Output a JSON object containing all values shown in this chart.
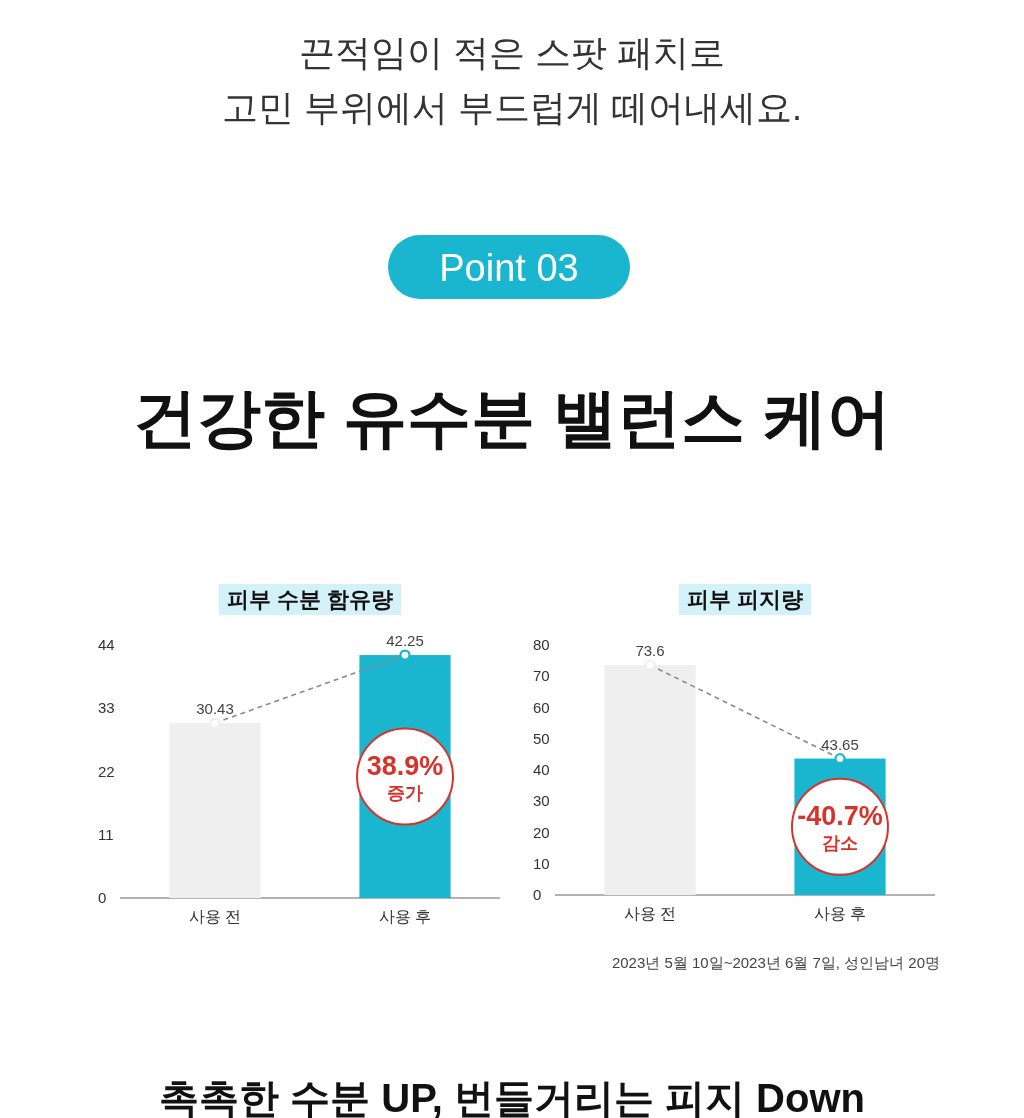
{
  "chart_data": [
    {
      "type": "other",
      "annotations": [
        "끈적임이 적은 스팟 패치로",
        "고민 부위에서 부드럽게 떼어내세요."
      ],
      "subtitle": "Point 03",
      "title": "건강한 유수분 밸런스 케어"
    },
    {
      "type": "bar",
      "title": "피부 수분 함유량",
      "categories": [
        "사용 전",
        "사용 후"
      ],
      "ylim": [
        0,
        44
      ],
      "yticks": [
        0,
        11,
        22,
        33,
        44
      ],
      "data_labels": true,
      "marker": "circle",
      "line_style": "dashed",
      "series": [
        {
          "values": [
            30.43,
            42.25
          ],
          "colors": [
            "#efefef",
            "#1ab6cf"
          ]
        }
      ],
      "annotations": [
        "38.9%\n증가"
      ]
    },
    {
      "type": "bar",
      "title": "피부 피지량",
      "categories": [
        "사용 전",
        "사용 후"
      ],
      "ylim": [
        0,
        80
      ],
      "yticks": [
        0,
        10,
        20,
        30,
        40,
        50,
        60,
        70,
        80
      ],
      "data_labels": true,
      "marker": "circle",
      "line_style": "dashed",
      "series": [
        {
          "values": [
            73.6,
            43.65
          ],
          "colors": [
            "#efefef",
            "#1ab6cf"
          ]
        }
      ],
      "annotations": [
        "-40.7%\n감소",
        "2023년 5월 10일~2023년 6월 7일, 성인남녀 20명"
      ]
    },
    {
      "type": "other",
      "title": "촉촉한 수분 UP, 번들거리는 피지 Down"
    }
  ]
}
